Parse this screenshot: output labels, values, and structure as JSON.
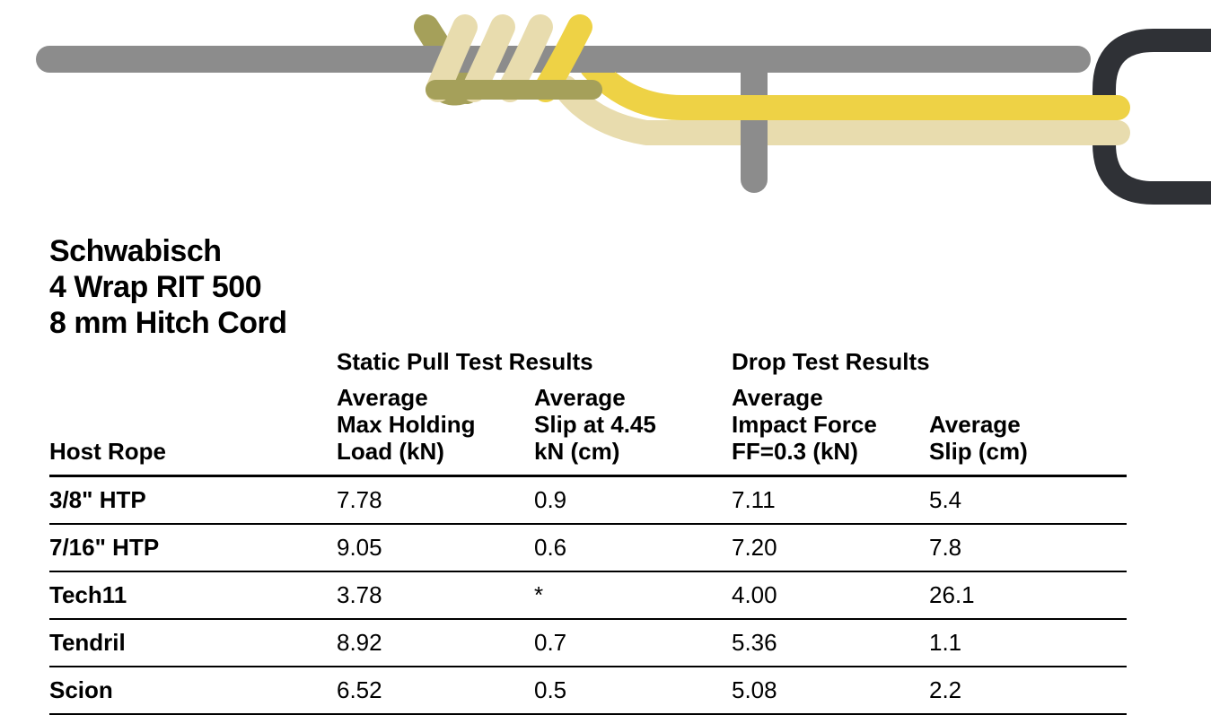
{
  "title": {
    "line1": "Schwabisch",
    "line2": "4 Wrap RIT 500",
    "line3": "8 mm Hitch Cord"
  },
  "table": {
    "type": "table",
    "group_headers": {
      "static": "Static Pull Test Results",
      "drop": "Drop Test Results"
    },
    "column_headers": {
      "host_rope": "Host Rope",
      "static_max_holding": "Average\nMax Holding\nLoad (kN)",
      "static_slip": "Average\nSlip at 4.45\nkN (cm)",
      "drop_impact": "Average\nImpact Force\nFF=0.3 (kN)",
      "drop_slip": "Average\nSlip (cm)"
    },
    "rows": [
      {
        "host_rope": "3/8\" HTP",
        "static_max_holding": "7.78",
        "static_slip": "0.9",
        "drop_impact": "7.11",
        "drop_slip": "5.4"
      },
      {
        "host_rope": "7/16\" HTP",
        "static_max_holding": "9.05",
        "static_slip": "0.6",
        "drop_impact": "7.20",
        "drop_slip": "7.8"
      },
      {
        "host_rope": "Tech11",
        "static_max_holding": "3.78",
        "static_slip": "*",
        "drop_impact": "4.00",
        "drop_slip": "26.1"
      },
      {
        "host_rope": "Tendril",
        "static_max_holding": "8.92",
        "static_slip": "0.7",
        "drop_impact": "5.36",
        "drop_slip": "1.1"
      },
      {
        "host_rope": "Scion",
        "static_max_holding": "6.52",
        "static_slip": "0.5",
        "drop_impact": "5.08",
        "drop_slip": "2.2"
      }
    ]
  },
  "diagram": {
    "type": "diagram",
    "colors": {
      "host_rope": "#8c8c8c",
      "cord_yellow_front": "#eed245",
      "cord_yellow_mid": "#d0c268",
      "cord_cream": "#e8dcae",
      "cord_olive": "#a5a05a",
      "carabiner": "#2f3136",
      "background": "#ffffff"
    },
    "stroke_width_host": 30,
    "stroke_width_cord": 28,
    "stroke_width_carabiner": 26
  }
}
